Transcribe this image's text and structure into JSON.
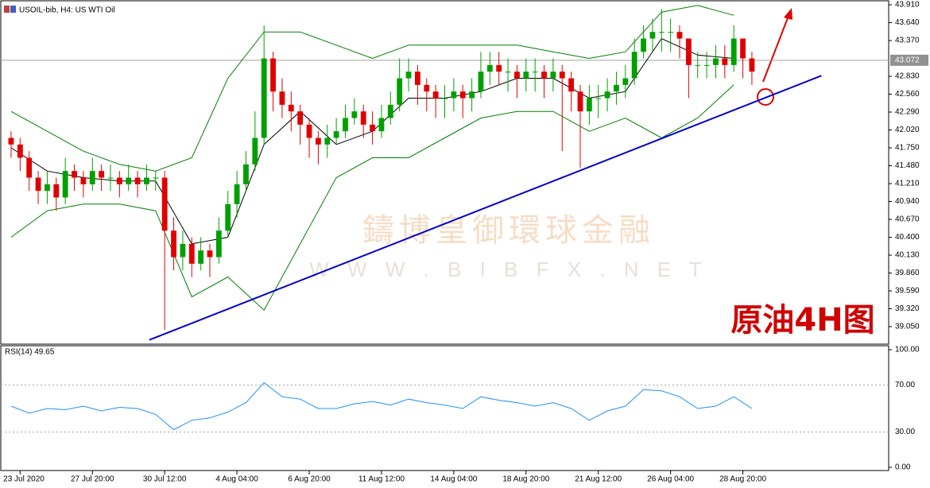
{
  "chart_data": {
    "type": "candlestick",
    "title": "USOIL-bib, H4:  US WTI Oil",
    "annotation": "原油4H图",
    "watermark": [
      "鑄博皇御環球金融",
      "W W W . B I B F X . N E T"
    ],
    "up_color": "#00a000",
    "down_color": "#e00000",
    "xlim": [
      -1.14,
      97.14
    ],
    "ylim": [
      38.786,
      43.982
    ],
    "xticks": [
      {
        "value": 1,
        "label": "23 Jul 2020"
      },
      {
        "value": 9,
        "label": "27 Jul 20:00"
      },
      {
        "value": 17,
        "label": "30 Jul 12:00"
      },
      {
        "value": 25,
        "label": "4 Aug 04:00"
      },
      {
        "value": 33,
        "label": "6 Aug 20:00"
      },
      {
        "value": 41,
        "label": "11 Aug 12:00"
      },
      {
        "value": 49,
        "label": "14 Aug 04:00"
      },
      {
        "value": 57,
        "label": "18 Aug 20:00"
      },
      {
        "value": 65,
        "label": "21 Aug 12:00"
      },
      {
        "value": 73,
        "label": "26 Aug 04:00"
      },
      {
        "value": 81,
        "label": "28 Aug 20:00"
      }
    ],
    "yticks": [
      {
        "value": 43.91,
        "label": "43.910"
      },
      {
        "value": 43.64,
        "label": "43.640"
      },
      {
        "value": 43.37,
        "label": "43.370"
      },
      {
        "value": 42.83,
        "label": "42.830"
      },
      {
        "value": 42.56,
        "label": "42.560"
      },
      {
        "value": 42.29,
        "label": "42.290"
      },
      {
        "value": 42.02,
        "label": "42.020"
      },
      {
        "value": 41.75,
        "label": "41.750"
      },
      {
        "value": 41.48,
        "label": "41.480"
      },
      {
        "value": 41.21,
        "label": "41.210"
      },
      {
        "value": 40.94,
        "label": "40.940"
      },
      {
        "value": 40.67,
        "label": "40.670"
      },
      {
        "value": 40.4,
        "label": "40.400"
      },
      {
        "value": 40.13,
        "label": "40.130"
      },
      {
        "value": 39.86,
        "label": "39.860"
      },
      {
        "value": 39.59,
        "label": "39.590"
      },
      {
        "value": 39.32,
        "label": "39.320"
      },
      {
        "value": 39.05,
        "label": "39.050"
      }
    ],
    "current_price": {
      "value": 43.072,
      "label": "43.072"
    },
    "open": [
      41.9,
      41.8,
      41.6,
      41.3,
      41.1,
      41.2,
      41.0,
      41.4,
      41.3,
      41.2,
      41.4,
      41.3,
      41.3,
      41.2,
      41.3,
      41.2,
      41.3,
      41.3,
      40.5,
      40.1,
      40.3,
      40.0,
      40.2,
      40.1,
      40.5,
      40.9,
      41.2,
      41.5,
      41.9,
      43.1,
      42.6,
      42.4,
      42.3,
      42.1,
      41.9,
      41.8,
      41.9,
      42.0,
      42.2,
      42.3,
      42.1,
      42.0,
      42.2,
      42.4,
      42.8,
      42.9,
      42.7,
      42.6,
      42.5,
      42.5,
      42.6,
      42.5,
      42.6,
      42.9,
      43.0,
      42.9,
      42.9,
      42.8,
      42.9,
      42.9,
      42.8,
      42.9,
      42.8,
      42.6,
      42.3,
      42.5,
      42.5,
      42.6,
      42.7,
      42.8,
      43.2,
      43.4,
      43.5,
      43.5,
      43.5,
      43.4,
      43.0,
      43.0,
      43.0,
      43.1,
      43.0,
      43.4,
      43.1
    ],
    "high": [
      42.0,
      41.9,
      41.7,
      41.4,
      41.4,
      41.3,
      41.6,
      41.5,
      41.4,
      41.6,
      41.5,
      41.5,
      41.4,
      41.5,
      41.4,
      41.5,
      41.4,
      41.4,
      40.7,
      40.5,
      40.4,
      40.4,
      40.3,
      40.7,
      41.1,
      41.4,
      41.7,
      42.3,
      43.6,
      43.2,
      42.8,
      42.6,
      42.4,
      42.2,
      42.0,
      42.1,
      42.2,
      42.4,
      42.5,
      42.4,
      42.3,
      42.4,
      42.6,
      43.1,
      43.1,
      43.0,
      42.8,
      42.7,
      42.7,
      42.8,
      42.7,
      42.8,
      43.2,
      43.2,
      43.2,
      43.1,
      43.0,
      43.1,
      43.1,
      43.0,
      43.1,
      43.0,
      42.9,
      42.7,
      42.7,
      42.7,
      42.8,
      42.9,
      43.0,
      43.4,
      43.6,
      43.7,
      43.85,
      43.7,
      43.6,
      43.4,
      43.2,
      43.2,
      43.3,
      43.3,
      43.6,
      43.4,
      43.2
    ],
    "low": [
      41.6,
      41.4,
      41.1,
      40.9,
      40.9,
      40.8,
      40.9,
      41.1,
      41.0,
      41.1,
      41.1,
      41.1,
      41.0,
      41.1,
      41.0,
      41.1,
      41.1,
      39.0,
      39.9,
      39.9,
      39.8,
      39.9,
      39.8,
      40.0,
      40.4,
      40.7,
      41.1,
      41.4,
      41.8,
      42.3,
      42.2,
      42.0,
      41.8,
      41.6,
      41.5,
      41.6,
      41.8,
      41.9,
      42.1,
      41.9,
      41.8,
      41.9,
      42.1,
      42.3,
      42.6,
      42.4,
      42.3,
      42.2,
      42.2,
      42.3,
      42.2,
      42.3,
      42.5,
      42.7,
      42.7,
      42.6,
      42.5,
      42.6,
      42.6,
      42.5,
      42.6,
      41.7,
      42.3,
      41.45,
      42.1,
      42.2,
      42.3,
      42.4,
      42.5,
      42.7,
      43.1,
      43.2,
      43.2,
      43.2,
      43.1,
      42.5,
      42.8,
      42.8,
      42.8,
      42.8,
      42.9,
      42.8,
      42.7
    ],
    "close": [
      41.8,
      41.6,
      41.3,
      41.1,
      41.2,
      41.0,
      41.4,
      41.3,
      41.2,
      41.4,
      41.3,
      41.3,
      41.2,
      41.3,
      41.2,
      41.3,
      41.3,
      40.5,
      40.1,
      40.3,
      40.0,
      40.2,
      40.1,
      40.5,
      40.9,
      41.2,
      41.5,
      41.9,
      43.1,
      42.6,
      42.4,
      42.3,
      42.1,
      41.9,
      41.8,
      41.9,
      42.0,
      42.2,
      42.3,
      42.1,
      42.0,
      42.2,
      42.4,
      42.8,
      42.9,
      42.7,
      42.6,
      42.5,
      42.5,
      42.6,
      42.5,
      42.6,
      42.9,
      43.0,
      42.9,
      42.9,
      42.8,
      42.9,
      42.9,
      42.8,
      42.9,
      42.8,
      42.6,
      42.3,
      42.5,
      42.5,
      42.6,
      42.7,
      42.8,
      43.2,
      43.4,
      43.5,
      43.5,
      43.5,
      43.4,
      43.0,
      43.0,
      43.0,
      43.1,
      43.0,
      43.4,
      43.1,
      42.9
    ],
    "lines": [
      {
        "color": "#008000",
        "x": [
          0,
          4,
          8,
          12,
          16,
          20,
          24,
          28,
          32,
          36,
          40,
          44,
          48,
          52,
          56,
          60,
          64,
          68,
          72,
          76,
          80
        ],
        "values": [
          42.3,
          42.0,
          41.7,
          41.5,
          41.4,
          41.6,
          42.8,
          43.5,
          43.5,
          43.3,
          43.1,
          43.3,
          43.3,
          43.3,
          43.3,
          43.2,
          43.1,
          43.2,
          43.8,
          43.9,
          43.75
        ]
      },
      {
        "color": "#008000",
        "x": [
          0,
          4,
          8,
          12,
          16,
          20,
          24,
          28,
          32,
          36,
          40,
          44,
          48,
          52,
          56,
          60,
          64,
          68,
          72,
          76,
          80
        ],
        "values": [
          40.4,
          40.8,
          40.9,
          40.9,
          40.8,
          39.5,
          39.8,
          39.3,
          40.3,
          41.3,
          41.6,
          41.6,
          41.9,
          42.2,
          42.3,
          42.3,
          42.0,
          42.2,
          41.9,
          42.2,
          42.7
        ]
      },
      {
        "color": "#000000",
        "x": [
          0,
          4,
          8,
          12,
          16,
          20,
          24,
          28,
          32,
          36,
          40,
          44,
          48,
          52,
          56,
          60,
          64,
          68,
          72,
          76,
          80
        ],
        "values": [
          41.75,
          41.4,
          41.3,
          41.25,
          41.25,
          40.3,
          40.4,
          41.8,
          42.3,
          41.8,
          42.0,
          42.5,
          42.5,
          42.6,
          42.8,
          42.8,
          42.5,
          42.6,
          43.4,
          43.15,
          43.1
        ]
      }
    ],
    "trendline": {
      "color": "#0000cc",
      "x": [
        15.3,
        89.7
      ],
      "values": [
        38.85,
        42.84
      ]
    },
    "rsi": {
      "title": "RSI(14) 49.65",
      "color": "#1e90ff",
      "ylim": [
        0,
        100
      ],
      "yticks": [
        {
          "value": 100,
          "label": "100.00"
        },
        {
          "value": 70,
          "label": "70.00"
        },
        {
          "value": 30,
          "label": "30.00"
        },
        {
          "value": 0,
          "label": "0.00"
        }
      ],
      "x": [
        0,
        2,
        4,
        6,
        8,
        10,
        12,
        14,
        16,
        18,
        20,
        22,
        24,
        26,
        28,
        30,
        32,
        34,
        36,
        38,
        40,
        42,
        44,
        46,
        48,
        50,
        52,
        54,
        56,
        58,
        60,
        62,
        64,
        66,
        68,
        70,
        72,
        74,
        76,
        78,
        80,
        82
      ],
      "values": [
        52,
        46,
        50,
        49,
        52,
        48,
        51,
        50,
        45,
        32,
        40,
        42,
        47,
        55,
        72,
        60,
        58,
        50,
        50,
        54,
        56,
        53,
        58,
        55,
        53,
        50,
        60,
        57,
        55,
        52,
        55,
        50,
        40,
        48,
        52,
        66,
        65,
        60,
        50,
        52,
        60,
        50
      ]
    }
  }
}
